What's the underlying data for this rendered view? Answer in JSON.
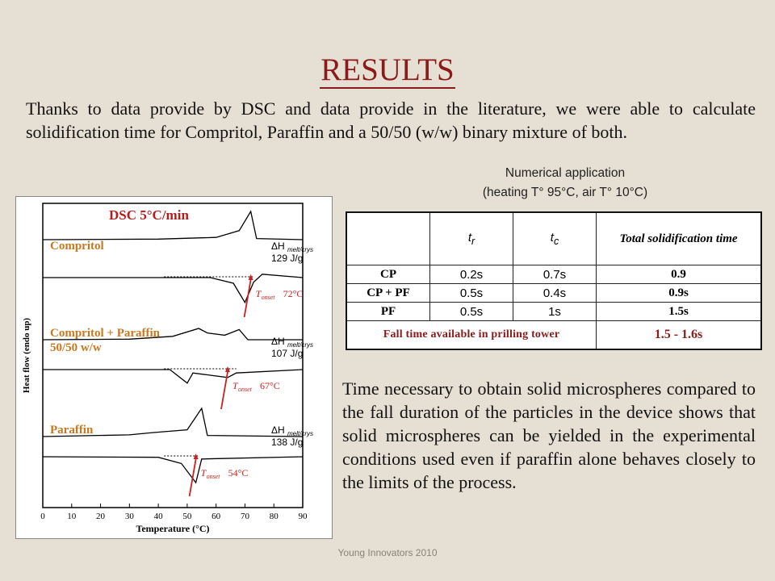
{
  "title": "RESULTS",
  "intro": "Thanks to data provide by DSC and data provide in the literature, we were able to calculate solidification time for Compritol, Paraffin and a 50/50 (w/w) binary mixture of both.",
  "numerical_application": {
    "line1": "Numerical application",
    "line2": "(heating T° 95°C, air T° 10°C)"
  },
  "table": {
    "headers": [
      "",
      "t",
      "t",
      "Total solidification time"
    ],
    "header_subscripts": [
      "",
      "r",
      "c",
      ""
    ],
    "rows": [
      {
        "label": "CP",
        "tr": "0.2s",
        "tc": "0.7s",
        "total": "0.9"
      },
      {
        "label": "CP + PF",
        "tr": "0.5s",
        "tc": "0.4s",
        "total": "0.9s"
      },
      {
        "label": "PF",
        "tr": "0.5s",
        "tc": "1s",
        "total": "1.5s"
      }
    ],
    "footer_label": "Fall time available in prilling tower",
    "footer_value": "1.5 - 1.6s"
  },
  "conclusion": "Time necessary to obtain solid microspheres compared to the fall duration of the particles in the device shows that solid microspheres can be yielded in the experimental conditions used even if paraffin alone behaves closely to the limits of the process.",
  "footer": "Young Innovators 2010",
  "chart_data": {
    "type": "line",
    "title": "DSC 5°C/min",
    "xlabel": "Temperature (°C)",
    "ylabel": "Heat flow (endo up)",
    "xlim": [
      0,
      90
    ],
    "xticks": [
      0,
      10,
      20,
      30,
      40,
      50,
      60,
      70,
      80,
      90
    ],
    "series": [
      {
        "name": "Compritol",
        "dh_label": "129 J/g",
        "onset": "72°C",
        "heating": [
          [
            0,
            0
          ],
          [
            40,
            0.05
          ],
          [
            60,
            0.2
          ],
          [
            68,
            0.8
          ],
          [
            72,
            2.5
          ],
          [
            74,
            0.1
          ],
          [
            90,
            0
          ]
        ],
        "cooling": [
          [
            0,
            0
          ],
          [
            58,
            0
          ],
          [
            66,
            -0.5
          ],
          [
            70,
            -2.2
          ],
          [
            73,
            -0.4
          ],
          [
            76,
            0.3
          ],
          [
            90,
            0
          ]
        ]
      },
      {
        "name": "Compritol + Paraffin 50/50 w/w",
        "dh_label": "107 J/g",
        "onset": "67°C",
        "heating": [
          [
            0,
            0
          ],
          [
            30,
            0.05
          ],
          [
            45,
            0.3
          ],
          [
            54,
            1.0
          ],
          [
            57,
            0.6
          ],
          [
            63,
            0.4
          ],
          [
            68,
            0.9
          ],
          [
            71,
            0
          ],
          [
            90,
            0
          ]
        ],
        "cooling": [
          [
            0,
            0
          ],
          [
            44,
            0
          ],
          [
            50,
            -1.2
          ],
          [
            52,
            -0.3
          ],
          [
            58,
            -0.5
          ],
          [
            64,
            -0.7
          ],
          [
            67,
            -0.3
          ],
          [
            90,
            0
          ]
        ]
      },
      {
        "name": "Paraffin",
        "dh_label": "138 J/g",
        "onset": "54°C",
        "heating": [
          [
            0,
            0
          ],
          [
            30,
            0.15
          ],
          [
            38,
            0.35
          ],
          [
            50,
            0.6
          ],
          [
            55,
            2.5
          ],
          [
            57,
            0.1
          ],
          [
            90,
            0
          ]
        ],
        "cooling": [
          [
            0,
            0
          ],
          [
            40,
            -0.05
          ],
          [
            48,
            -0.6
          ],
          [
            53,
            -2.3
          ],
          [
            55,
            -0.2
          ],
          [
            90,
            0
          ]
        ]
      }
    ]
  }
}
